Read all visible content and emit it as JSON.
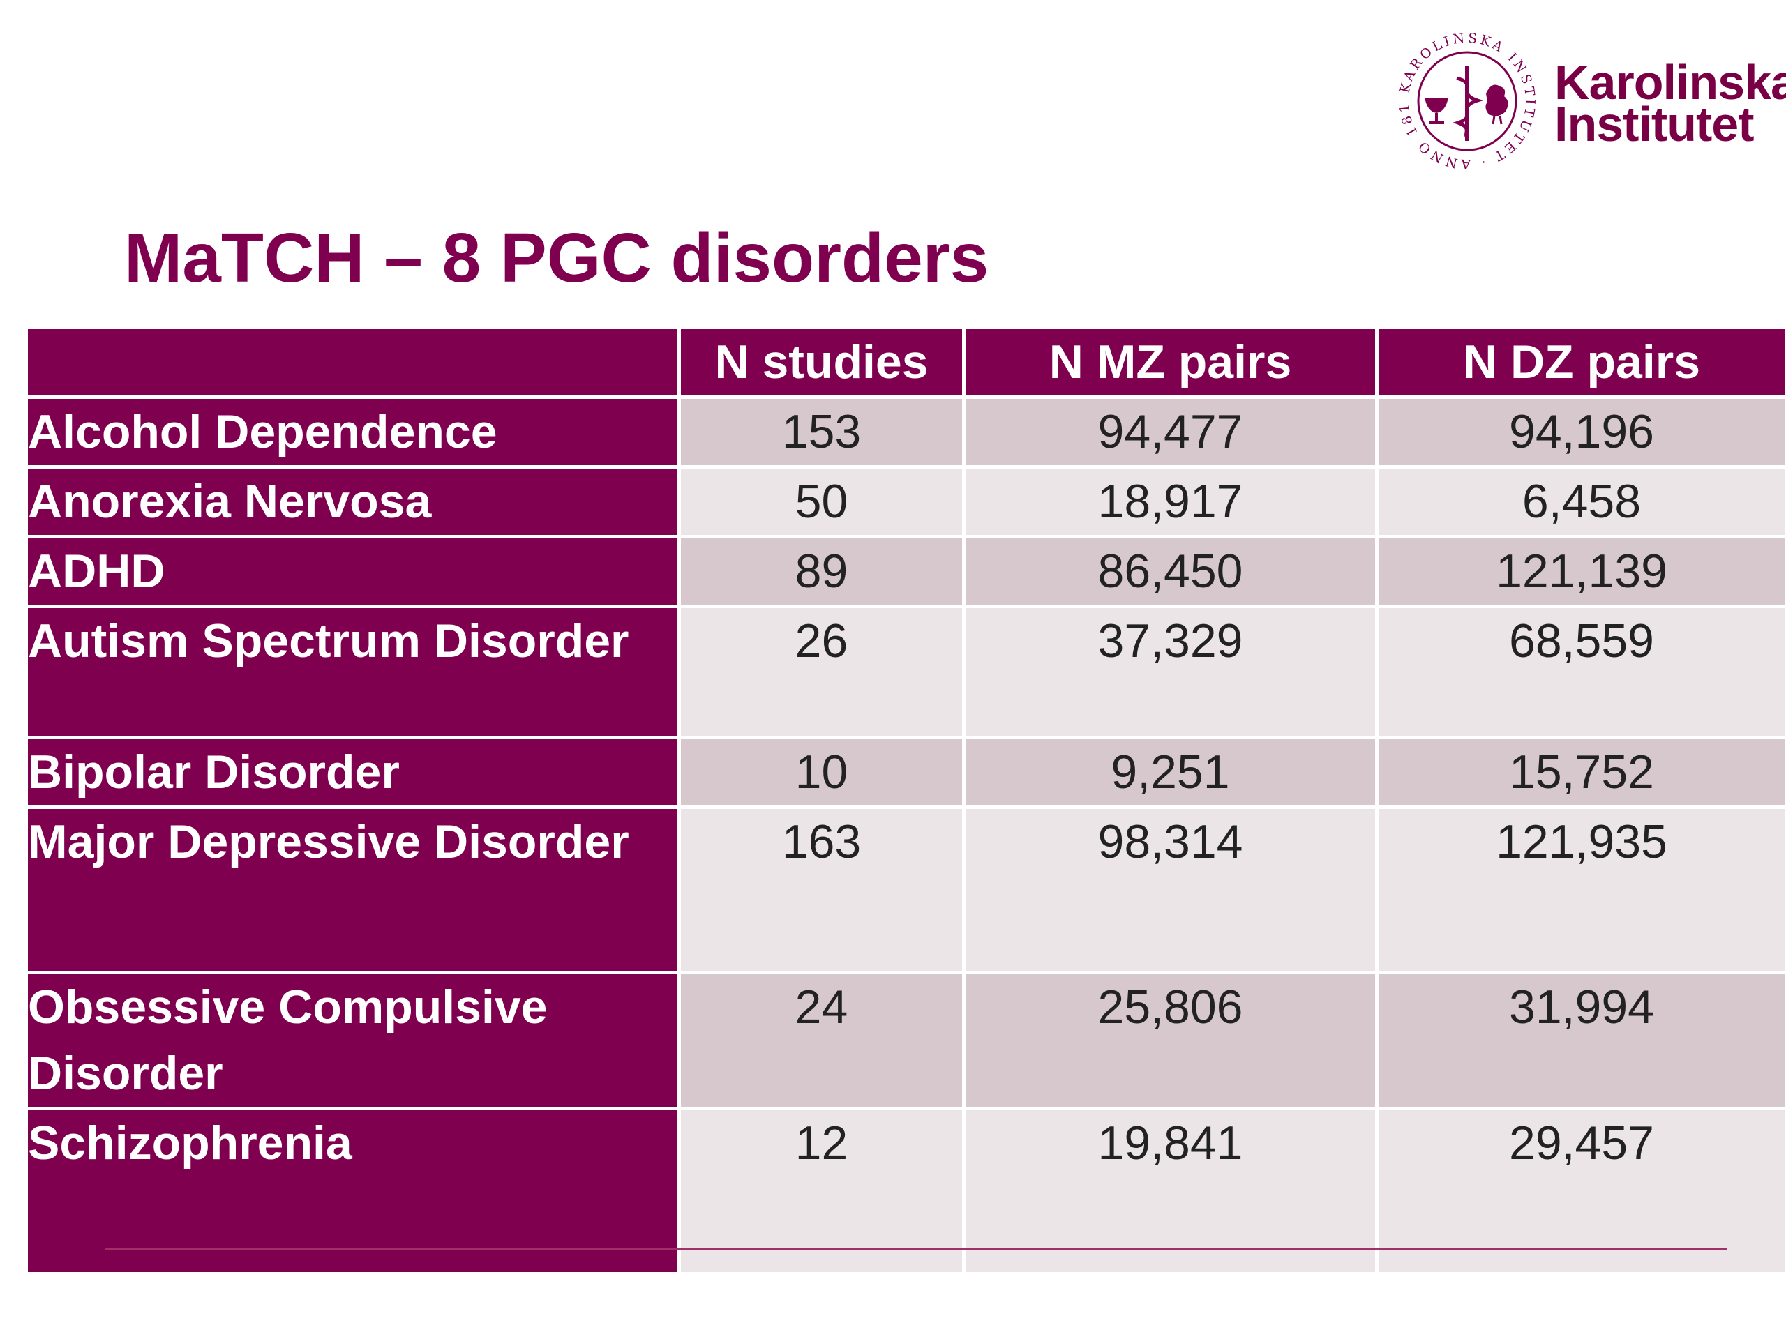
{
  "logo": {
    "seal_text": "KAROLINSKA INSTITUTET · ANNO 1810 ·",
    "line1": "Karolinska",
    "line2": "Institutet",
    "brand_color": "#800050"
  },
  "title": "MaTCH – 8 PGC disorders",
  "table": {
    "headers": [
      "",
      "N studies",
      "N MZ pairs",
      "N DZ pairs"
    ],
    "rows": [
      {
        "label": "Alcohol Dependence",
        "n_studies": "153",
        "n_mz": "94,477",
        "n_dz": "94,196"
      },
      {
        "label": "Anorexia Nervosa",
        "n_studies": "50",
        "n_mz": "18,917",
        "n_dz": "6,458"
      },
      {
        "label": "ADHD",
        "n_studies": "89",
        "n_mz": "86,450",
        "n_dz": "121,139"
      },
      {
        "label": "Autism Spectrum Disorder",
        "n_studies": "26",
        "n_mz": "37,329",
        "n_dz": "68,559"
      },
      {
        "label": "Bipolar Disorder",
        "n_studies": "10",
        "n_mz": "9,251",
        "n_dz": "15,752"
      },
      {
        "label": "Major Depressive Disorder",
        "n_studies": "163",
        "n_mz": "98,314",
        "n_dz": "121,935"
      },
      {
        "label": "Obsessive Compulsive Disorder",
        "n_studies": "24",
        "n_mz": "25,806",
        "n_dz": "31,994"
      },
      {
        "label": "Schizophrenia",
        "n_studies": "12",
        "n_mz": "19,841",
        "n_dz": "29,457"
      }
    ]
  },
  "colors": {
    "header_bg": "#800050",
    "row_odd_bg": "#d7c8ce",
    "row_even_bg": "#ebe5e7"
  }
}
